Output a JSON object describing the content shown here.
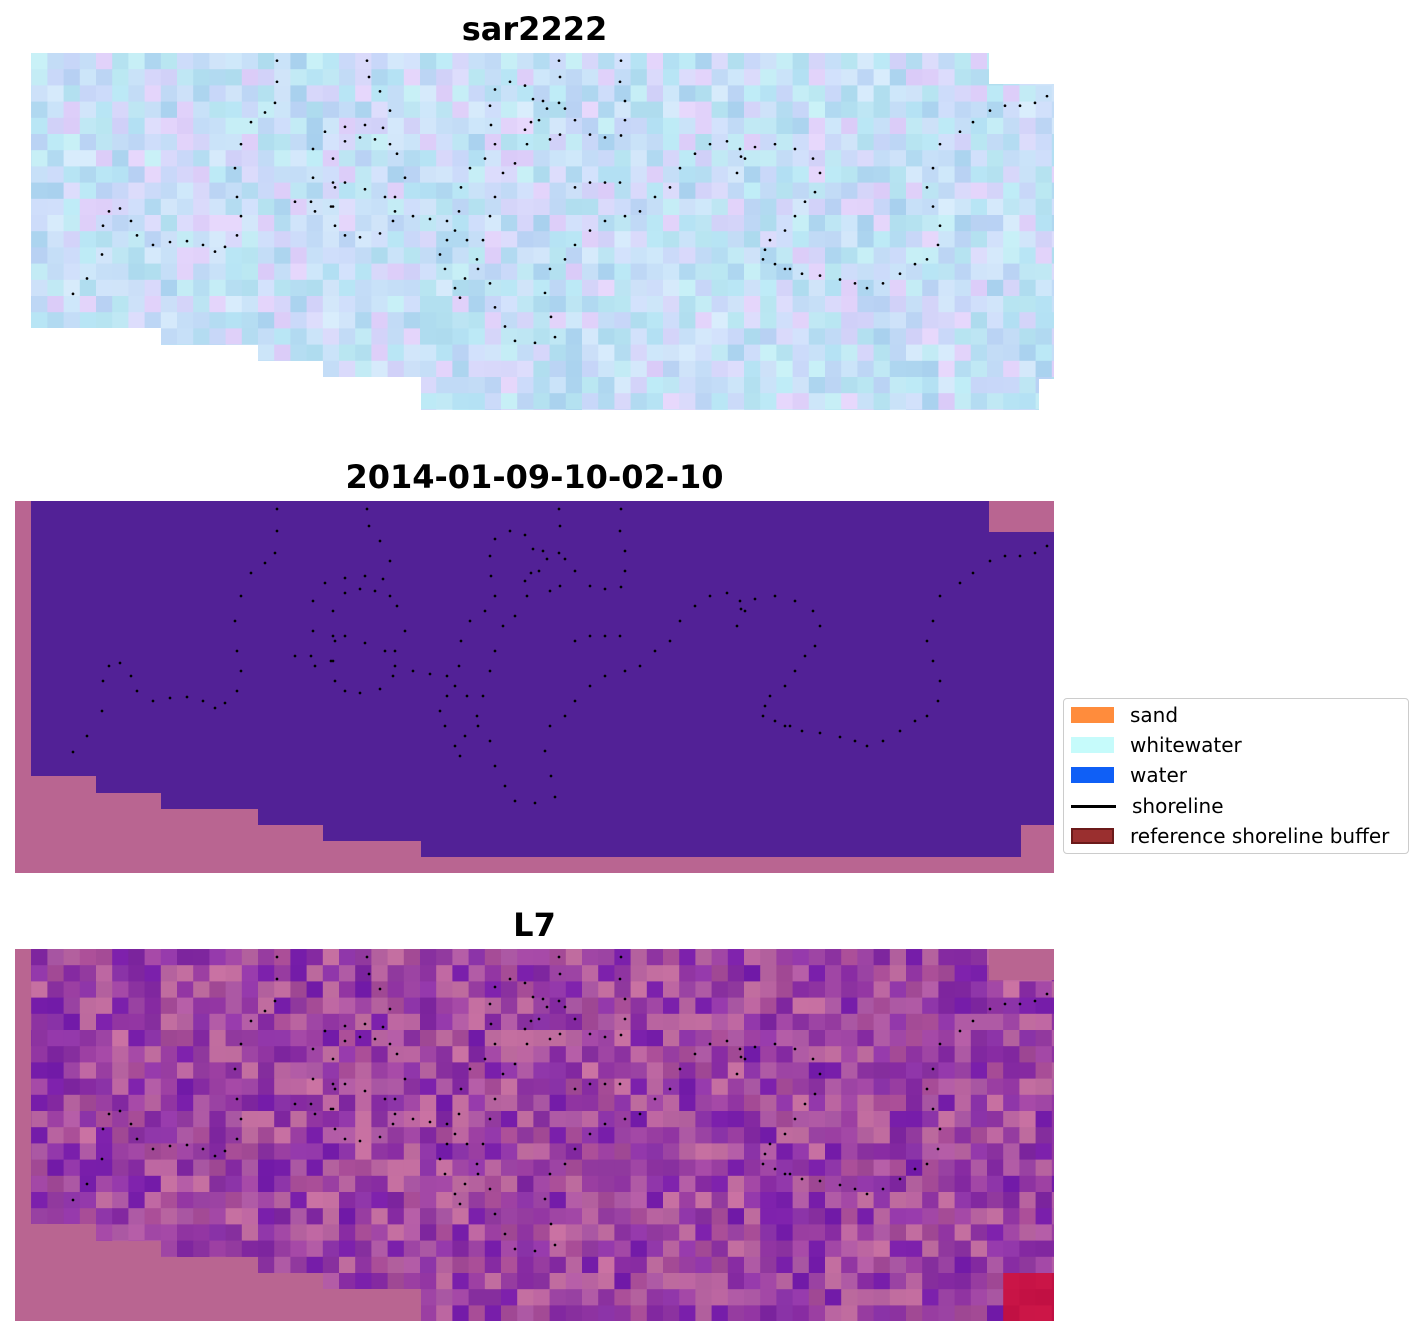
{
  "chart_data": [
    {
      "type": "heatmap",
      "title": "sar2222",
      "background_tone": "pastel-blue",
      "nodata_color": "#ffffff"
    },
    {
      "type": "heatmap",
      "title": "2014-01-09-10-02-10",
      "class_fill": "#522196",
      "nodata_color": "#b96591"
    },
    {
      "type": "heatmap",
      "title": "L7",
      "background_tone": "magenta-purple",
      "nodata_color": "#b96591"
    }
  ],
  "legend": {
    "placement": "right",
    "items": [
      {
        "label": "sand",
        "color": "#ff8c3c",
        "kind": "patch"
      },
      {
        "label": "whitewater",
        "color": "#c6fbfb",
        "kind": "patch"
      },
      {
        "label": "water",
        "color": "#0f5ff6",
        "kind": "patch"
      },
      {
        "label": "shoreline",
        "color": "#000000",
        "kind": "line"
      },
      {
        "label": "reference shoreline buffer",
        "color": "#9a2f2f",
        "edge": "#6b1a1a",
        "kind": "patch"
      }
    ]
  },
  "shoreline_style": {
    "color": "#000000",
    "dotted": true
  }
}
